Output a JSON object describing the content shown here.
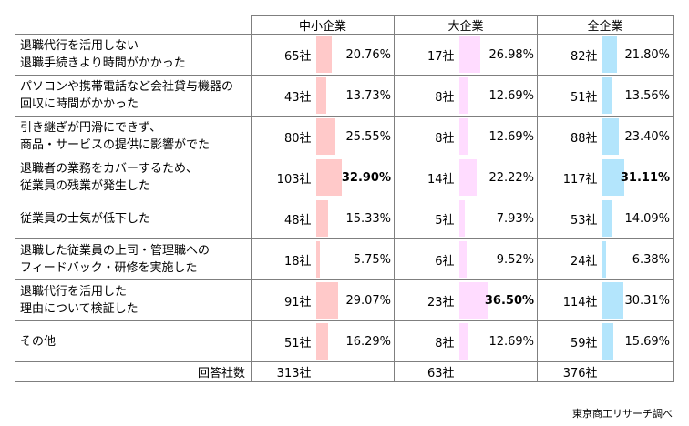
{
  "chart_data": {
    "type": "table",
    "groups": [
      "中小企業",
      "大企業",
      "全企業"
    ],
    "group_colors": [
      "#ffc9c9",
      "#ffdcff",
      "#b3e5fc"
    ],
    "rows": [
      {
        "label": [
          "退職代行を活用しない",
          "退職手続きより時間がかかった"
        ],
        "values": [
          {
            "count": "65社",
            "pct": "20.76%",
            "v": 20.76
          },
          {
            "count": "17社",
            "pct": "26.98%",
            "v": 26.98
          },
          {
            "count": "82社",
            "pct": "21.80%",
            "v": 21.8
          }
        ]
      },
      {
        "label": [
          "パソコンや携帯電話など会社貸与機器の",
          "回収に時間がかかった"
        ],
        "values": [
          {
            "count": "43社",
            "pct": "13.73%",
            "v": 13.73
          },
          {
            "count": "8社",
            "pct": "12.69%",
            "v": 12.69
          },
          {
            "count": "51社",
            "pct": "13.56%",
            "v": 13.56
          }
        ]
      },
      {
        "label": [
          "引き継ぎが円滑にできず、",
          "商品・サービスの提供に影響がでた"
        ],
        "values": [
          {
            "count": "80社",
            "pct": "25.55%",
            "v": 25.55
          },
          {
            "count": "8社",
            "pct": "12.69%",
            "v": 12.69
          },
          {
            "count": "88社",
            "pct": "23.40%",
            "v": 23.4
          }
        ]
      },
      {
        "label": [
          "退職者の業務をカバーするため、",
          "従業員の残業が発生した"
        ],
        "values": [
          {
            "count": "103社",
            "pct": "32.90%",
            "v": 32.9,
            "bold": true
          },
          {
            "count": "14社",
            "pct": "22.22%",
            "v": 22.22
          },
          {
            "count": "117社",
            "pct": "31.11%",
            "v": 31.11,
            "bold": true
          }
        ]
      },
      {
        "label": [
          "従業員の士気が低下した"
        ],
        "values": [
          {
            "count": "48社",
            "pct": "15.33%",
            "v": 15.33
          },
          {
            "count": "5社",
            "pct": "7.93%",
            "v": 7.93
          },
          {
            "count": "53社",
            "pct": "14.09%",
            "v": 14.09
          }
        ]
      },
      {
        "label": [
          "退職した従業員の上司・管理職への",
          "フィードバック・研修を実施した"
        ],
        "values": [
          {
            "count": "18社",
            "pct": "5.75%",
            "v": 5.75
          },
          {
            "count": "6社",
            "pct": "9.52%",
            "v": 9.52
          },
          {
            "count": "24社",
            "pct": "6.38%",
            "v": 6.38
          }
        ]
      },
      {
        "label": [
          "退職代行を活用した",
          "理由について検証した"
        ],
        "values": [
          {
            "count": "91社",
            "pct": "29.07%",
            "v": 29.07
          },
          {
            "count": "23社",
            "pct": "36.50%",
            "v": 36.5,
            "bold": true
          },
          {
            "count": "114社",
            "pct": "30.31%",
            "v": 30.31
          }
        ]
      },
      {
        "label": [
          "その他"
        ],
        "values": [
          {
            "count": "51社",
            "pct": "16.29%",
            "v": 16.29
          },
          {
            "count": "8社",
            "pct": "12.69%",
            "v": 12.69
          },
          {
            "count": "59社",
            "pct": "15.69%",
            "v": 15.69
          }
        ]
      }
    ],
    "total": {
      "label": "回答社数",
      "values": [
        "313社",
        "63社",
        "376社"
      ]
    },
    "bar_max": 100
  },
  "source": "東京商工リサーチ調べ"
}
